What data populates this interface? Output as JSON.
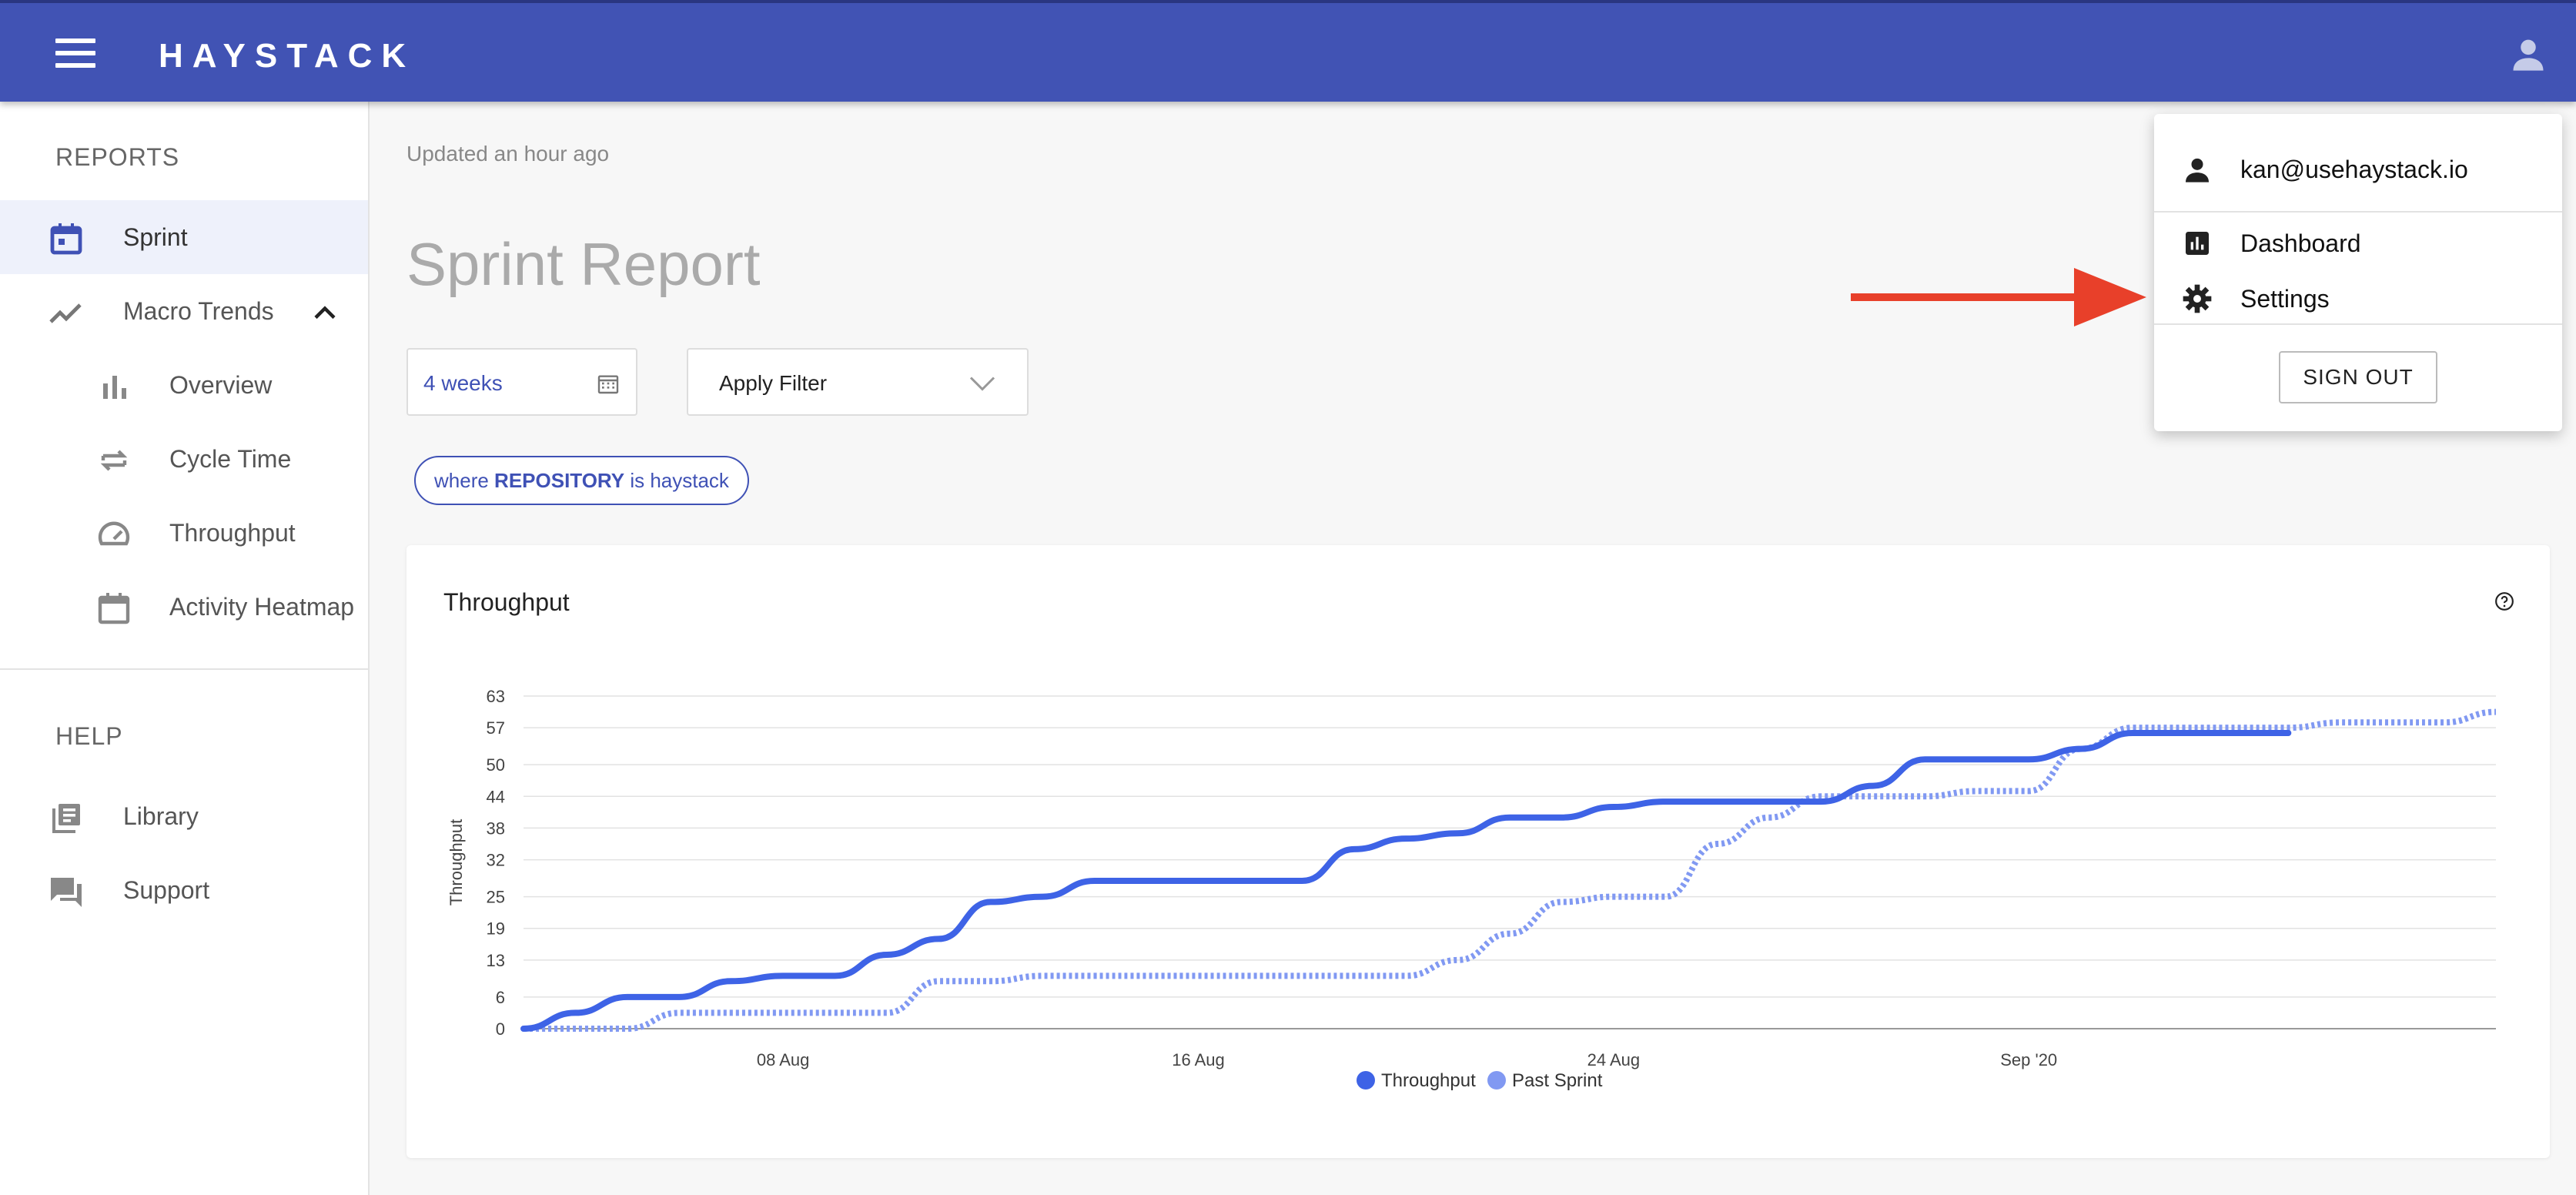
{
  "header": {
    "brand": "HAYSTACK",
    "brand_color": "#4153b4"
  },
  "sidebar": {
    "reports_heading": "REPORTS",
    "help_heading": "HELP",
    "items": [
      {
        "label": "Sprint",
        "icon": "calendar-icon",
        "active": true
      },
      {
        "label": "Macro Trends",
        "icon": "trend-line-icon",
        "expanded": true
      },
      {
        "label": "Overview",
        "icon": "bar-chart-icon"
      },
      {
        "label": "Cycle Time",
        "icon": "repeat-icon"
      },
      {
        "label": "Throughput",
        "icon": "speedometer-icon"
      },
      {
        "label": "Activity Heatmap",
        "icon": "calendar-outline-icon"
      }
    ],
    "help_items": [
      {
        "label": "Library",
        "icon": "library-icon"
      },
      {
        "label": "Support",
        "icon": "chat-icon"
      }
    ]
  },
  "main": {
    "updated": "Updated an hour ago",
    "title": "Sprint Report",
    "date_range": "4 weeks",
    "filter_placeholder": "Apply Filter",
    "chip": {
      "prefix": "where ",
      "field": "REPOSITORY",
      "suffix": " is haystack"
    }
  },
  "chart_card": {
    "title": "Throughput"
  },
  "chart_data": {
    "type": "line",
    "title": "Throughput",
    "ylabel": "Throughput",
    "xlabel": "",
    "yticks": [
      0,
      6,
      13,
      19,
      25,
      32,
      38,
      44,
      50,
      57,
      63
    ],
    "xticks": [
      "08 Aug",
      "16 Aug",
      "24 Aug",
      "Sep '20"
    ],
    "x_start": "Aug 3",
    "grid": true,
    "legend": "bottom-center",
    "series": [
      {
        "name": "Throughput",
        "color": "#3e63e6",
        "style": "solid",
        "x": [
          0,
          1,
          2,
          3,
          4,
          5,
          6,
          7,
          8,
          9,
          10,
          11,
          12,
          13,
          14,
          15,
          16,
          17,
          18,
          19,
          20,
          21,
          22,
          23,
          24,
          25,
          26,
          27,
          28,
          29,
          30,
          31,
          32,
          33,
          34
        ],
        "y": [
          0,
          3,
          6,
          6,
          9,
          10,
          10,
          14,
          17,
          24,
          25,
          28,
          28,
          28,
          28,
          28,
          34,
          36,
          37,
          40,
          40,
          42,
          43,
          43,
          43,
          43,
          46,
          51,
          51,
          51,
          53,
          56,
          56,
          56,
          56
        ]
      },
      {
        "name": "Past Sprint",
        "color": "#8199f2",
        "style": "dotted",
        "x": [
          0,
          2,
          3,
          4,
          6,
          7,
          8,
          9,
          10,
          11,
          12,
          13,
          14,
          15,
          16,
          17,
          18,
          19,
          20,
          21,
          22,
          23,
          24,
          25,
          26,
          27,
          28,
          29,
          30,
          31,
          32,
          33,
          34,
          35,
          36,
          37,
          38
        ],
        "y": [
          0,
          0,
          3,
          3,
          3,
          3,
          9,
          9,
          10,
          10,
          10,
          10,
          10,
          10,
          10,
          10,
          13,
          18,
          24,
          25,
          25,
          35,
          40,
          44,
          44,
          44,
          45,
          45,
          53,
          57,
          57,
          57,
          57,
          58,
          58,
          58,
          60
        ]
      }
    ]
  },
  "dropdown": {
    "email": "kan@usehaystack.io",
    "items": [
      {
        "label": "Dashboard",
        "icon": "analytics-icon"
      },
      {
        "label": "Settings",
        "icon": "gear-icon"
      }
    ],
    "sign_out": "SIGN OUT"
  },
  "annotation": {
    "arrow_color": "#e8402a"
  }
}
